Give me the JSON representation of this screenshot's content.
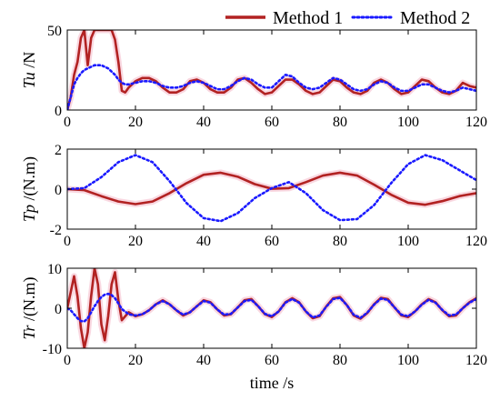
{
  "chart_data": [
    {
      "type": "line",
      "title": "",
      "xlabel": "",
      "ylabel": "Tu /N",
      "ylabel_italic_part": "Tu",
      "ylabel_normal_part": " /N",
      "xlim": [
        0,
        120
      ],
      "ylim": [
        0,
        50
      ],
      "xticks": [
        0,
        20,
        40,
        60,
        80,
        100,
        120
      ],
      "yticks": [
        0,
        50
      ],
      "grid": false,
      "series": [
        {
          "name": "Method 1",
          "color": "#b22222",
          "style": "solid",
          "x": [
            0,
            1,
            2,
            3,
            4,
            5,
            6,
            7,
            8,
            9,
            10,
            11,
            12,
            13,
            14,
            15,
            16,
            17,
            18,
            20,
            22,
            24,
            26,
            28,
            30,
            32,
            34,
            36,
            38,
            40,
            42,
            44,
            46,
            48,
            50,
            52,
            54,
            56,
            58,
            60,
            62,
            64,
            66,
            68,
            70,
            72,
            74,
            76,
            78,
            80,
            82,
            84,
            86,
            88,
            90,
            92,
            94,
            96,
            98,
            100,
            102,
            104,
            106,
            108,
            110,
            112,
            114,
            116,
            118,
            120
          ],
          "y": [
            0,
            8,
            22,
            30,
            45,
            50,
            28,
            45,
            50,
            50,
            50,
            50,
            50,
            50,
            44,
            30,
            12,
            11,
            14,
            18,
            20,
            20,
            18,
            14,
            11,
            11,
            13,
            18,
            19,
            17,
            13,
            11,
            11,
            14,
            19,
            20,
            17,
            13,
            10,
            11,
            15,
            19,
            19,
            16,
            12,
            10,
            11,
            15,
            19,
            18,
            14,
            11,
            10,
            12,
            17,
            19,
            17,
            13,
            10,
            11,
            15,
            19,
            18,
            14,
            11,
            10,
            12,
            17,
            15,
            14
          ]
        },
        {
          "name": "Method 2",
          "color": "#1a1aff",
          "style": "dotted",
          "x": [
            0,
            1,
            2,
            3,
            4,
            5,
            6,
            7,
            8,
            9,
            10,
            11,
            12,
            13,
            14,
            15,
            16,
            17,
            18,
            20,
            22,
            24,
            26,
            28,
            30,
            32,
            34,
            36,
            38,
            40,
            42,
            44,
            46,
            48,
            50,
            52,
            54,
            56,
            58,
            60,
            62,
            64,
            66,
            68,
            70,
            72,
            74,
            76,
            78,
            80,
            82,
            84,
            86,
            88,
            90,
            92,
            94,
            96,
            98,
            100,
            102,
            104,
            106,
            108,
            110,
            112,
            114,
            116,
            118,
            120
          ],
          "y": [
            0,
            8,
            16,
            20,
            23,
            25,
            26,
            27,
            28,
            28,
            28,
            27,
            26,
            24,
            22,
            19,
            17,
            16,
            16,
            17,
            18,
            18,
            17,
            15,
            14,
            14,
            15,
            17,
            18,
            17,
            15,
            13,
            13,
            15,
            18,
            20,
            19,
            16,
            14,
            14,
            18,
            22,
            21,
            17,
            14,
            13,
            14,
            17,
            20,
            19,
            16,
            13,
            12,
            13,
            16,
            18,
            17,
            14,
            12,
            12,
            14,
            16,
            16,
            14,
            12,
            11,
            12,
            14,
            13,
            12
          ]
        }
      ]
    },
    {
      "type": "line",
      "title": "",
      "xlabel": "",
      "ylabel": "Tp /(N.m)",
      "ylabel_italic_part": "Tp",
      "ylabel_normal_part": " /(N.m)",
      "xlim": [
        0,
        120
      ],
      "ylim": [
        -2,
        2
      ],
      "xticks": [
        0,
        20,
        40,
        60,
        80,
        100,
        120
      ],
      "yticks": [
        -2,
        0,
        2
      ],
      "grid": false,
      "series": [
        {
          "name": "Method 1",
          "color": "#b22222",
          "style": "solid",
          "x": [
            0,
            5,
            10,
            15,
            20,
            25,
            30,
            35,
            40,
            45,
            50,
            55,
            60,
            65,
            70,
            75,
            80,
            85,
            90,
            95,
            100,
            105,
            110,
            115,
            120
          ],
          "y": [
            0,
            -0.05,
            -0.35,
            -0.62,
            -0.75,
            -0.62,
            -0.2,
            0.3,
            0.72,
            0.82,
            0.62,
            0.25,
            0.02,
            0.05,
            0.35,
            0.68,
            0.82,
            0.68,
            0.22,
            -0.28,
            -0.68,
            -0.78,
            -0.6,
            -0.35,
            -0.2
          ]
        },
        {
          "name": "Method 2",
          "color": "#1a1aff",
          "style": "dotted",
          "x": [
            0,
            5,
            10,
            15,
            20,
            25,
            30,
            35,
            40,
            45,
            50,
            55,
            60,
            65,
            70,
            75,
            80,
            85,
            90,
            95,
            100,
            105,
            110,
            115,
            120
          ],
          "y": [
            0,
            0.05,
            0.6,
            1.35,
            1.7,
            1.35,
            0.4,
            -0.7,
            -1.45,
            -1.6,
            -1.2,
            -0.45,
            0.05,
            0.35,
            -0.2,
            -1.05,
            -1.55,
            -1.5,
            -0.8,
            0.3,
            1.25,
            1.7,
            1.45,
            0.95,
            0.45
          ]
        }
      ]
    },
    {
      "type": "line",
      "title": "",
      "xlabel": "time /s",
      "ylabel": "Tr /(N.m)",
      "ylabel_italic_part": "Tr",
      "ylabel_normal_part": " /(N.m)",
      "xlim": [
        0,
        120
      ],
      "ylim": [
        -10,
        10
      ],
      "xticks": [
        0,
        20,
        40,
        60,
        80,
        100,
        120
      ],
      "yticks": [
        -10,
        0,
        10
      ],
      "grid": false,
      "series": [
        {
          "name": "Method 1",
          "color": "#b22222",
          "style": "solid",
          "x": [
            0,
            1,
            2,
            3,
            4,
            5,
            6,
            7,
            8,
            9,
            10,
            11,
            12,
            13,
            14,
            15,
            16,
            18,
            20,
            22,
            24,
            26,
            28,
            30,
            32,
            34,
            36,
            38,
            40,
            42,
            44,
            46,
            48,
            50,
            52,
            54,
            56,
            58,
            60,
            62,
            64,
            66,
            68,
            70,
            72,
            74,
            76,
            78,
            80,
            82,
            84,
            86,
            88,
            90,
            92,
            94,
            96,
            98,
            100,
            102,
            104,
            106,
            108,
            110,
            112,
            114,
            116,
            118,
            120
          ],
          "y": [
            0,
            4,
            8,
            3,
            -5,
            -10,
            -6,
            3,
            10,
            6,
            -4,
            -8,
            -2,
            6,
            9,
            2,
            -3,
            -1,
            -2,
            -1.5,
            -0.5,
            1,
            2,
            1,
            -0.5,
            -1.8,
            -1,
            0.5,
            2,
            1.5,
            -0.3,
            -1.8,
            -1.5,
            0.2,
            2,
            2.3,
            0.5,
            -1.5,
            -2.2,
            -0.8,
            1.5,
            2.5,
            1.5,
            -0.8,
            -2.5,
            -2,
            0.5,
            2.5,
            2.8,
            0.8,
            -1.8,
            -2.6,
            -1.2,
            1,
            2.6,
            2.3,
            0.2,
            -1.8,
            -2.2,
            -0.8,
            1,
            2.3,
            1.5,
            -0.5,
            -2,
            -1.8,
            0,
            1.5,
            2.5
          ]
        },
        {
          "name": "Method 2",
          "color": "#1a1aff",
          "style": "dotted",
          "x": [
            0,
            1,
            2,
            3,
            4,
            5,
            6,
            7,
            8,
            9,
            10,
            11,
            12,
            13,
            14,
            15,
            16,
            18,
            20,
            22,
            24,
            26,
            28,
            30,
            32,
            34,
            36,
            38,
            40,
            42,
            44,
            46,
            48,
            50,
            52,
            54,
            56,
            58,
            60,
            62,
            64,
            66,
            68,
            70,
            72,
            74,
            76,
            78,
            80,
            82,
            84,
            86,
            88,
            90,
            92,
            94,
            96,
            98,
            100,
            102,
            104,
            106,
            108,
            110,
            112,
            114,
            116,
            118,
            120
          ],
          "y": [
            0,
            -0.5,
            -1.5,
            -2.5,
            -3.2,
            -3.3,
            -2.5,
            -1,
            0.5,
            1.8,
            2.8,
            3.4,
            3.6,
            3.3,
            2.5,
            1.2,
            -0.2,
            -1.5,
            -1.8,
            -1.5,
            -0.5,
            1,
            1.8,
            1,
            -0.5,
            -1.6,
            -1,
            0.5,
            1.8,
            1.4,
            -0.3,
            -1.6,
            -1.4,
            0.2,
            1.8,
            2.1,
            0.5,
            -1.4,
            -2,
            -0.8,
            1.4,
            2.3,
            1.4,
            -0.8,
            -2.3,
            -1.8,
            0.4,
            2.3,
            2.6,
            0.8,
            -1.6,
            -2.4,
            -1.1,
            0.9,
            2.4,
            2.1,
            0.2,
            -1.6,
            -2,
            -0.8,
            0.9,
            2.1,
            1.4,
            -0.4,
            -1.8,
            -1.6,
            0,
            1.4,
            2.3
          ]
        }
      ]
    }
  ],
  "legend": {
    "entries": [
      "Method 1",
      "Method 2"
    ],
    "placement": "top-right"
  }
}
